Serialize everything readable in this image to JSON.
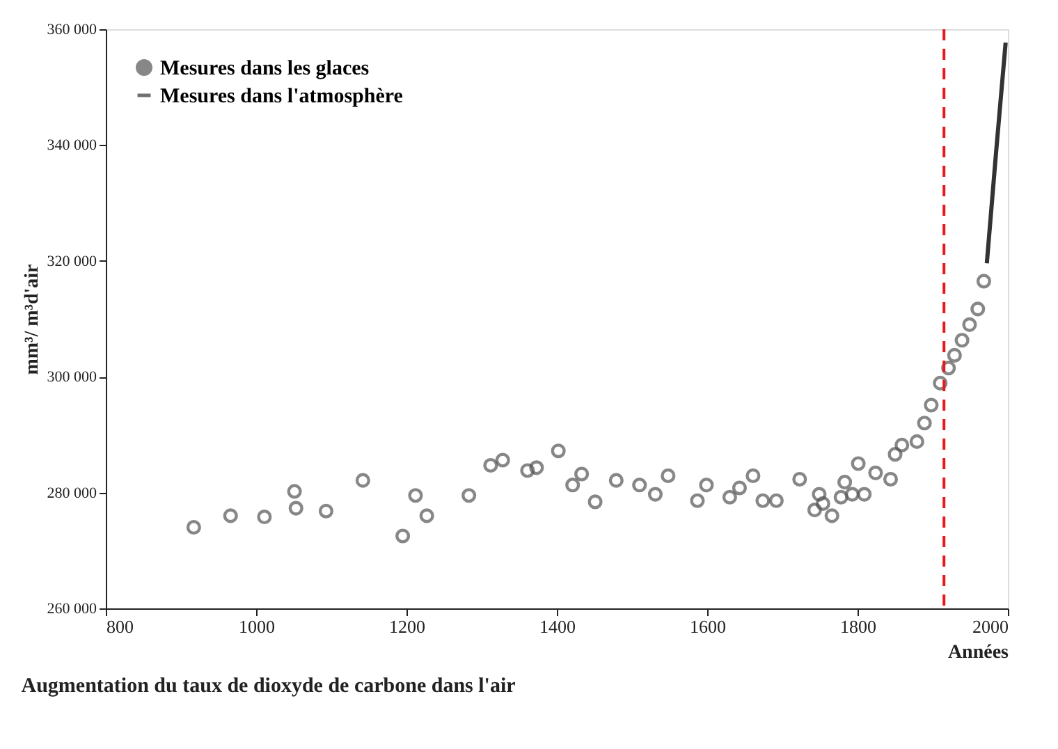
{
  "chart_data": {
    "type": "scatter",
    "title": "Augmentation du taux de dioxyde de carbone dans l'air",
    "xlabel": "Années",
    "ylabel": "mm³/ m³d'air",
    "series": [
      {
        "name": "Mesures dans les glaces",
        "marker": "circle",
        "color": "#555555",
        "x": [
          917,
          966,
          1011,
          1051,
          1053,
          1093,
          1142,
          1195,
          1212,
          1227,
          1283,
          1312,
          1328,
          1361,
          1373,
          1402,
          1421,
          1433,
          1451,
          1479,
          1510,
          1531,
          1548,
          1587,
          1599,
          1630,
          1643,
          1661,
          1674,
          1692,
          1723,
          1743,
          1749,
          1754,
          1766,
          1778,
          1783,
          1793,
          1801,
          1809,
          1824,
          1844,
          1850,
          1859,
          1879,
          1889,
          1898,
          1910,
          1921,
          1929,
          1939,
          1949,
          1960,
          1968
        ],
        "values": [
          274000,
          276000,
          275800,
          280200,
          277300,
          276800,
          282100,
          272500,
          279500,
          276000,
          279500,
          284700,
          285600,
          283800,
          284300,
          287200,
          281300,
          283200,
          278400,
          282100,
          281300,
          279700,
          282900,
          278600,
          281300,
          279200,
          280800,
          282900,
          278600,
          278600,
          282300,
          277000,
          279700,
          278100,
          276000,
          279200,
          281800,
          279700,
          285000,
          279700,
          283400,
          282300,
          286600,
          288200,
          288800,
          292000,
          295100,
          298900,
          301500,
          303700,
          306300,
          309000,
          311700,
          316500
        ]
      },
      {
        "name": "Mesures dans l'atmosphère",
        "type": "line",
        "color": "#333333",
        "x": [
          1972,
          1984,
          1997
        ],
        "values": [
          319600,
          338300,
          357700
        ]
      }
    ],
    "xlim": [
      800,
      2000
    ],
    "xticks": [
      800,
      1000,
      1200,
      1400,
      1600,
      1800,
      2000
    ],
    "ylim": [
      260000,
      360000
    ],
    "yticks": [
      {
        "value": 260000,
        "label": "260 000"
      },
      {
        "value": 280000,
        "label": "280 000"
      },
      {
        "value": 300000,
        "label": "300 000"
      },
      {
        "value": 320000,
        "label": "320 000"
      },
      {
        "value": 340000,
        "label": "340 000"
      },
      {
        "value": 360000,
        "label": "360 000"
      }
    ],
    "ref_lines": [
      {
        "axis": "x",
        "value": 1915,
        "color": "#e8191c",
        "line_style": "dashed"
      }
    ],
    "grid": false,
    "legend": "top left"
  }
}
